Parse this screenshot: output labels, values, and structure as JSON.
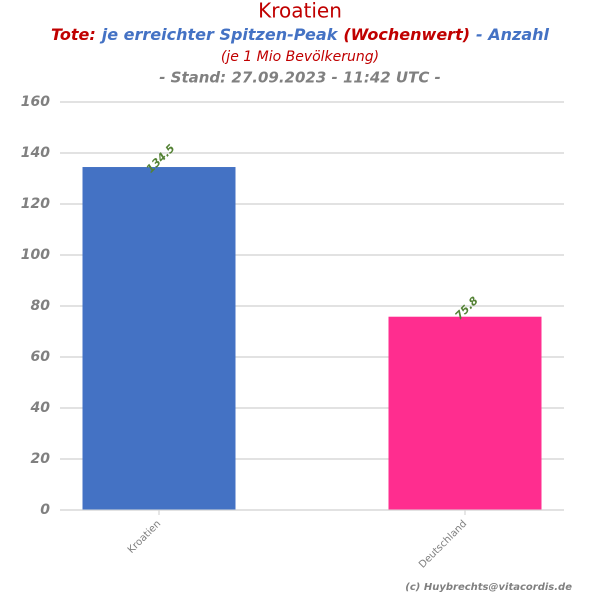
{
  "chart_data": {
    "type": "bar",
    "title": "Kroatien",
    "subtitle_parts": [
      {
        "text": "Tote:",
        "color": "#c00000"
      },
      {
        "text": "je erreichter Spitzen-Peak",
        "color": "#4472c4"
      },
      {
        "text": "(Wochenwert)",
        "color": "#c00000"
      },
      {
        "text": "- Anzahl",
        "color": "#4472c4"
      }
    ],
    "subtitle2": "(je 1 Mio Bevölkerung)",
    "subtitle3": "- Stand: 27.09.2023 - 11:42 UTC -",
    "categories": [
      "Kroatien",
      "Deutschland"
    ],
    "values": [
      134.5,
      75.8
    ],
    "colors": [
      "#4472c4",
      "#ff2d8f"
    ],
    "ylim": [
      0,
      160
    ],
    "yticks": [
      0,
      20,
      40,
      60,
      80,
      100,
      120,
      140,
      160
    ],
    "grid": true,
    "credit": "(c) Huybrechts@vitacordis.de"
  }
}
